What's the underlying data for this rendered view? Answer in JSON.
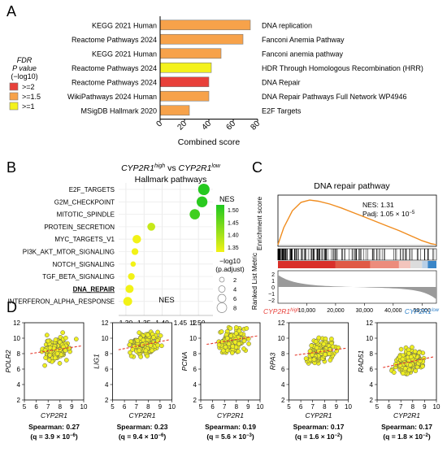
{
  "panels": {
    "A": "A",
    "B": "B",
    "C": "C",
    "D": "D"
  },
  "colors": {
    "fdr_red": "#e8403a",
    "fdr_orange": "#f7a24a",
    "fdr_yellow": "#f4f21c",
    "bar_outline": "#7a7a7a",
    "nes_high": "#1fc81f",
    "nes_low": "#f2f217",
    "gsea_curve": "#f08c1e",
    "scatter_fill": "#eeee20",
    "trend": "#e53b2e"
  },
  "panel_a": {
    "legend": {
      "title_line1": "FDR",
      "title_line2": "P value",
      "title_line3": "(−log10)",
      "items": [
        ">=2",
        ">=1.5",
        ">=1"
      ]
    },
    "xlabel": "Combined score",
    "ticks": [
      "0",
      "20",
      "40",
      "60",
      "80"
    ]
  },
  "chart_data": [
    {
      "type": "bar",
      "orientation": "horizontal",
      "xlabel": "Combined score",
      "xlim": [
        0,
        80
      ],
      "ticks": [
        0,
        20,
        40,
        60,
        80
      ],
      "rows": [
        {
          "source": "KEGG 2021 Human",
          "term": "DNA replication",
          "value": 74,
          "fdr_class": ">=1.5"
        },
        {
          "source": "Reactome Pathways 2024",
          "term": "Fanconi Anemia Pathway",
          "value": 68,
          "fdr_class": ">=1.5"
        },
        {
          "source": "KEGG 2021 Human",
          "term": "Fanconi anemia pathway",
          "value": 50,
          "fdr_class": ">=1.5"
        },
        {
          "source": "Reactome Pathways 2024",
          "term": "HDR Through Homologous Recombination (HRR)",
          "value": 42,
          "fdr_class": ">=1"
        },
        {
          "source": "Reactome Pathways 2024",
          "term": "DNA Repair",
          "value": 40,
          "fdr_class": ">=2"
        },
        {
          "source": "WikiPathways 2024 Human",
          "term": "DNA Repair Pathways Full Network WP4946",
          "value": 40,
          "fdr_class": ">=1.5"
        },
        {
          "source": "MSigDB Hallmark 2020",
          "term": "E2F Targets",
          "value": 24,
          "fdr_class": ">=1.5"
        }
      ]
    },
    {
      "type": "scatter",
      "title_gene1": "CYP2R1",
      "title_sup1": "high",
      "title_vs": " vs ",
      "title_gene2": "CYP2R1",
      "title_sup2": "low",
      "subtitle": "Hallmark pathways",
      "xlabel": "NES",
      "xlim": [
        1.28,
        1.54
      ],
      "ticks": [
        1.3,
        1.35,
        1.4,
        1.45,
        1.5
      ],
      "tick_labels": [
        "1.30",
        "1.35",
        "1.40",
        "1.45",
        "1.50"
      ],
      "color_legend": {
        "title": "NES",
        "ticks": [
          "1.50",
          "1.45",
          "1.40",
          "1.35"
        ],
        "range": [
          1.33,
          1.52
        ]
      },
      "size_legend": {
        "title_line1": "−log10",
        "title_line2": "(p.adjust)",
        "values": [
          "2",
          "4",
          "6",
          "8"
        ]
      },
      "points": [
        {
          "pathway": "E2F_TARGETS",
          "nes": 1.515,
          "size": 7.0,
          "bold": false
        },
        {
          "pathway": "G2M_CHECKPOINT",
          "nes": 1.51,
          "size": 6.5,
          "bold": false
        },
        {
          "pathway": "MITOTIC_SPINDLE",
          "nes": 1.49,
          "size": 6.0,
          "bold": false
        },
        {
          "pathway": "PROTEIN_SECRETION",
          "nes": 1.37,
          "size": 4.0,
          "bold": false
        },
        {
          "pathway": "MYC_TARGETS_V1",
          "nes": 1.33,
          "size": 4.5,
          "bold": false
        },
        {
          "pathway": "PI3K_AKT_MTOR_SIGNALING",
          "nes": 1.325,
          "size": 3.0,
          "bold": false
        },
        {
          "pathway": "NOTCH_SIGNALING",
          "nes": 1.32,
          "size": 1.8,
          "bold": false
        },
        {
          "pathway": "TGF_BETA_SIGNALING",
          "nes": 1.315,
          "size": 3.0,
          "bold": false
        },
        {
          "pathway": "DNA_REPAIR",
          "nes": 1.31,
          "size": 4.2,
          "bold": true
        },
        {
          "pathway": "INTERFERON_ALPHA_RESPONSE",
          "nes": 1.305,
          "size": 4.8,
          "bold": false
        }
      ]
    },
    {
      "type": "line",
      "title": "DNA repair pathway",
      "ylabel": "Enrichment score",
      "ylabel2": "Ranked List Metric",
      "stat_nes": "NES: 1.31",
      "stat_padj_prefix": "Padj: 1.05 × 10",
      "stat_padj_exp": "−5",
      "x_ticks": [
        "10,000",
        "20,000",
        "30,000",
        "40,000",
        "50,000"
      ],
      "metric_ticks": [
        "2",
        "1",
        "0",
        "−1",
        "−2"
      ],
      "left_gene": "CYP2R1",
      "left_sup": "high",
      "right_gene": "CYP2R1",
      "right_sup": "low",
      "x": [
        0,
        2000,
        5000,
        8000,
        11000,
        14000,
        18000,
        22000,
        26000,
        30000,
        34000,
        38000,
        42000,
        46000,
        50000,
        53000,
        55000
      ],
      "y": [
        0.0,
        0.3,
        0.6,
        0.75,
        0.79,
        0.77,
        0.72,
        0.65,
        0.57,
        0.49,
        0.41,
        0.33,
        0.25,
        0.16,
        0.07,
        0.02,
        0.0
      ]
    },
    {
      "type": "scatter",
      "xlabel": "CYP2R1",
      "x_ticks": [
        "5",
        "6",
        "7",
        "8",
        "9",
        "10"
      ],
      "y_ticks": [
        "2",
        "4",
        "6",
        "8",
        "10",
        "12"
      ],
      "subplots": [
        {
          "gene": "POLR2",
          "stat": "Spearman: 0.27",
          "q_prefix": "(q = 3.9 × 10",
          "q_exp": "−6",
          "trend": [
            8.0,
            9.0
          ]
        },
        {
          "gene": "LIG1",
          "stat": "Spearman: 0.23",
          "q_prefix": "(q = 9.4 × 10",
          "q_exp": "−6",
          "trend": [
            8.5,
            9.8
          ]
        },
        {
          "gene": "PCNA",
          "stat": "Spearman: 0.19",
          "q_prefix": "(q = 5.6 × 10",
          "q_exp": "−3",
          "trend": [
            9.2,
            10.3
          ]
        },
        {
          "gene": "RPA3",
          "stat": "Spearman: 0.17",
          "q_prefix": "(q = 1.6 × 10",
          "q_exp": "−2",
          "trend": [
            7.8,
            8.7
          ]
        },
        {
          "gene": "RAD51",
          "stat": "Spearman: 0.17",
          "q_prefix": "(q = 1.8 × 10",
          "q_exp": "−2",
          "trend": [
            6.2,
            7.6
          ]
        }
      ]
    }
  ]
}
